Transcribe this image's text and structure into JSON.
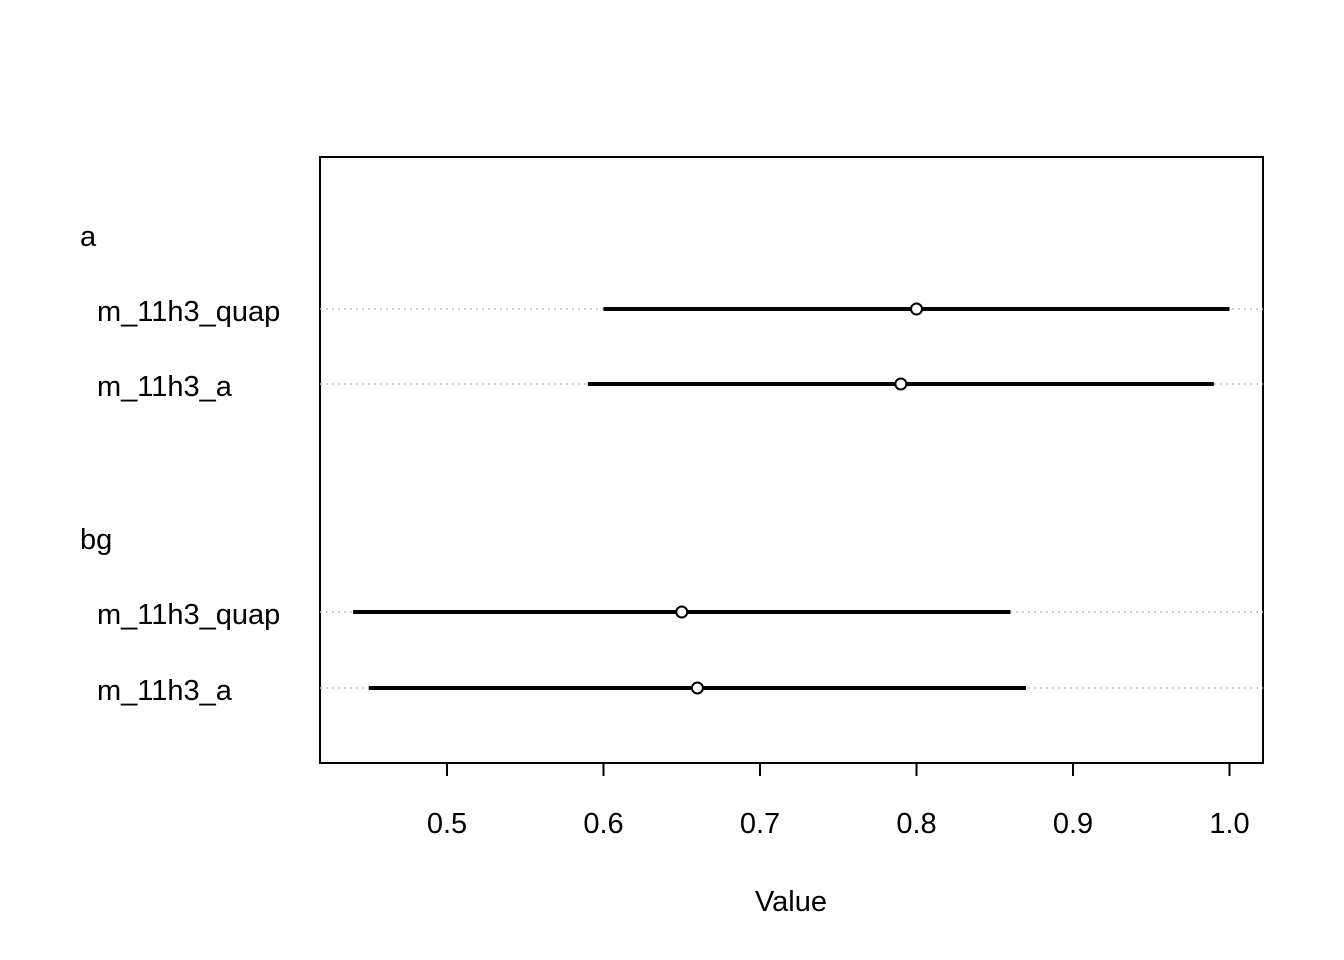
{
  "chart_data": {
    "type": "scatter",
    "title": "",
    "xlabel": "Value",
    "ylabel": "",
    "xlim": [
      0.42,
      1.022
    ],
    "x_ticks": [
      0.5,
      0.6,
      0.7,
      0.8,
      0.9,
      1.0
    ],
    "x_tick_labels": [
      "0.5",
      "0.6",
      "0.7",
      "0.8",
      "0.9",
      "1.0"
    ],
    "grid": "dotted guide line per row",
    "groups": [
      {
        "label": "a",
        "rows": [
          {
            "label": "m_11h3_quap",
            "mean": 0.8,
            "lower": 0.6,
            "upper": 1.0
          },
          {
            "label": "m_11h3_a",
            "mean": 0.79,
            "lower": 0.59,
            "upper": 0.99
          }
        ]
      },
      {
        "label": "bg",
        "rows": [
          {
            "label": "m_11h3_quap",
            "mean": 0.65,
            "lower": 0.44,
            "upper": 0.86
          },
          {
            "label": "m_11h3_a",
            "mean": 0.66,
            "lower": 0.45,
            "upper": 0.87
          }
        ]
      }
    ]
  },
  "colors": {
    "line": "#000000",
    "guide": "#bebebe",
    "frame": "#000000",
    "background": "#ffffff"
  }
}
